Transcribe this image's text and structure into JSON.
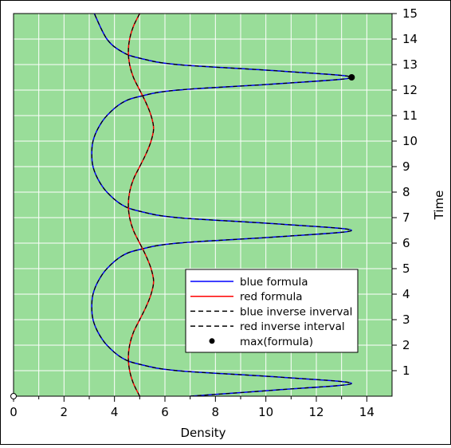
{
  "chart_data": {
    "type": "line",
    "xlabel": "Density",
    "ylabel": "Time",
    "xlim": [
      0,
      15
    ],
    "ylim": [
      0,
      15
    ],
    "x_ticks": [
      "0",
      "2",
      "4",
      "6",
      "8",
      "10",
      "12",
      "14"
    ],
    "y_ticks": [
      "1",
      "2",
      "3",
      "4",
      "5",
      "6",
      "7",
      "8",
      "9",
      "10",
      "11",
      "12",
      "13",
      "14",
      "15"
    ],
    "grid": true,
    "background": "#99dd99",
    "legend_position": "bottom-right",
    "legend": [
      {
        "label": "blue formula",
        "style": "solid",
        "color": "#0000ff"
      },
      {
        "label": "red formula",
        "style": "solid",
        "color": "#ff0000"
      },
      {
        "label": "blue inverse inverval",
        "style": "dashed",
        "color": "#000000"
      },
      {
        "label": "red inverse interval",
        "style": "dashed",
        "color": "#000000"
      },
      {
        "label": "max(formula)",
        "style": "marker",
        "color": "#000000"
      }
    ],
    "series": [
      {
        "name": "blue formula",
        "color": "#0000ff",
        "points": [
          [
            7.0,
            0.0
          ],
          [
            10.5,
            0.25
          ],
          [
            13.4,
            0.5
          ],
          [
            10.5,
            0.75
          ],
          [
            6.5,
            1.0
          ],
          [
            5.0,
            1.25
          ],
          [
            4.3,
            1.5
          ],
          [
            3.7,
            2.0
          ],
          [
            3.35,
            2.5
          ],
          [
            3.15,
            3.0
          ],
          [
            3.1,
            3.5
          ],
          [
            3.15,
            4.0
          ],
          [
            3.35,
            4.5
          ],
          [
            3.7,
            5.0
          ],
          [
            4.3,
            5.5
          ],
          [
            5.0,
            5.75
          ],
          [
            6.5,
            6.0
          ],
          [
            10.5,
            6.25
          ],
          [
            13.4,
            6.5
          ],
          [
            10.5,
            6.75
          ],
          [
            6.5,
            7.0
          ],
          [
            5.0,
            7.25
          ],
          [
            4.3,
            7.5
          ],
          [
            3.7,
            8.0
          ],
          [
            3.35,
            8.5
          ],
          [
            3.15,
            9.0
          ],
          [
            3.1,
            9.5
          ],
          [
            3.15,
            10.0
          ],
          [
            3.35,
            10.5
          ],
          [
            3.7,
            11.0
          ],
          [
            4.3,
            11.5
          ],
          [
            5.0,
            11.75
          ],
          [
            6.5,
            12.0
          ],
          [
            10.5,
            12.25
          ],
          [
            13.4,
            12.5
          ],
          [
            10.5,
            12.75
          ],
          [
            6.5,
            13.0
          ],
          [
            5.0,
            13.25
          ],
          [
            4.3,
            13.5
          ],
          [
            3.7,
            14.0
          ],
          [
            3.2,
            15.0
          ]
        ]
      },
      {
        "name": "red formula",
        "color": "#ff0000",
        "points": [
          [
            5.0,
            0.0
          ],
          [
            4.75,
            0.5
          ],
          [
            4.6,
            1.0
          ],
          [
            4.55,
            1.5
          ],
          [
            4.6,
            2.0
          ],
          [
            4.75,
            2.5
          ],
          [
            5.0,
            3.0
          ],
          [
            5.25,
            3.5
          ],
          [
            5.45,
            4.0
          ],
          [
            5.55,
            4.5
          ],
          [
            5.45,
            5.0
          ],
          [
            5.25,
            5.5
          ],
          [
            5.0,
            6.0
          ],
          [
            4.75,
            6.5
          ],
          [
            4.6,
            7.0
          ],
          [
            4.55,
            7.5
          ],
          [
            4.6,
            8.0
          ],
          [
            4.75,
            8.5
          ],
          [
            5.0,
            9.0
          ],
          [
            5.25,
            9.5
          ],
          [
            5.45,
            10.0
          ],
          [
            5.55,
            10.5
          ],
          [
            5.45,
            11.0
          ],
          [
            5.25,
            11.5
          ],
          [
            5.0,
            12.0
          ],
          [
            4.75,
            12.5
          ],
          [
            4.6,
            13.0
          ],
          [
            4.55,
            13.5
          ],
          [
            4.6,
            14.0
          ],
          [
            4.75,
            14.5
          ],
          [
            5.0,
            15.0
          ]
        ]
      }
    ],
    "markers": [
      {
        "name": "max(formula)",
        "x": 13.4,
        "y": 12.5,
        "fill": "#000000"
      },
      {
        "name": "origin",
        "x": 0,
        "y": 0,
        "fill": "#ffffff"
      }
    ]
  }
}
